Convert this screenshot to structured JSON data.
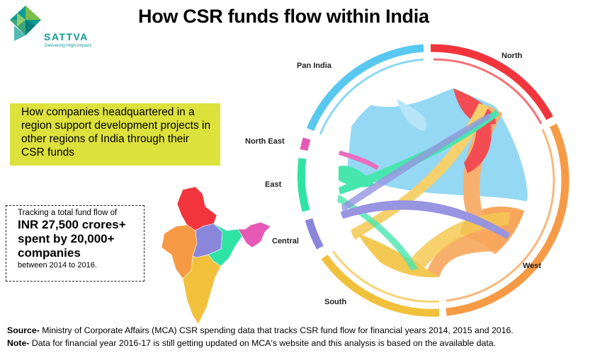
{
  "brand": {
    "name": "SATTVA",
    "tagline": "Delivering High Impact.",
    "colors": {
      "teal": "#0e9b94",
      "green": "#7cbd4a"
    }
  },
  "title": "How CSR funds flow within India",
  "highlight_box": {
    "text": "How companies headquartered in a region support development projects in other regions of India through their CSR funds",
    "color": "#dde13c"
  },
  "stats_box": {
    "line1": "Tracking a total fund flow of",
    "line2": "INR 27,500 crores+",
    "line3": "spent by 20,000+",
    "line4": "companies",
    "line5": "between 2014 to 2016."
  },
  "map": {
    "icon": "india-map-icon"
  },
  "regions": [
    {
      "name": "North",
      "color": "#f2353c"
    },
    {
      "name": "West",
      "color": "#f79a45"
    },
    {
      "name": "South",
      "color": "#f2c13c"
    },
    {
      "name": "Central",
      "color": "#8a86dc"
    },
    {
      "name": "East",
      "color": "#2fe3a4"
    },
    {
      "name": "North East",
      "color": "#e659b5"
    },
    {
      "name": "Pan India",
      "color": "#59c8f0"
    }
  ],
  "footer": {
    "source_label": "Source-",
    "source_text": " Ministry of Corporate Affairs (MCA) CSR spending data that tracks CSR fund flow for financial years 2014, 2015 and 2016.",
    "note_label": "Note-",
    "note_text": " Data for financial year 2016-17 is still getting updated on MCA's website and this analysis is based on the available data."
  }
}
